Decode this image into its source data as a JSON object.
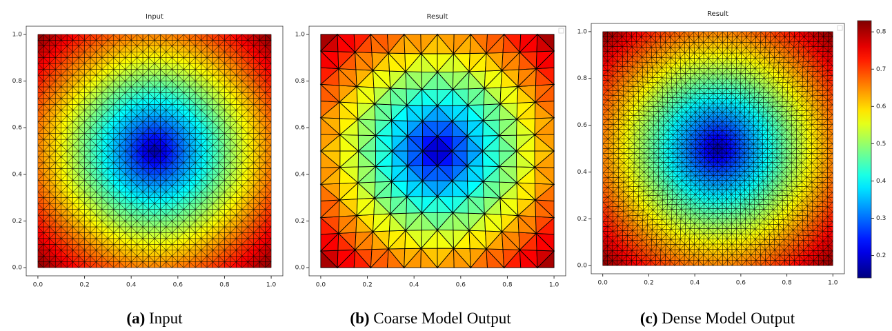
{
  "chart_data": [
    {
      "type": "mesh",
      "title": "Input",
      "caption_label": "(a)",
      "caption": "Input",
      "xlim": [
        -0.05,
        1.05
      ],
      "ylim": [
        -0.035,
        1.035
      ],
      "xticks": [
        {
          "value": 0,
          "label": "0.0"
        },
        0.2,
        0.4,
        0.6,
        0.8,
        {
          "value": 1,
          "label": "1.0"
        }
      ],
      "yticks": [
        {
          "value": 0,
          "label": "0.0"
        },
        0.2,
        0.4,
        0.6,
        0.8,
        {
          "value": 1,
          "label": "1.0"
        }
      ]
    },
    {
      "type": "mesh",
      "title": "Result",
      "caption_label": "(b)",
      "caption": "Coarse Model Output",
      "xlim": [
        -0.05,
        1.05
      ],
      "ylim": [
        -0.035,
        1.035
      ],
      "xticks": [
        {
          "value": 0,
          "label": "0.0"
        },
        0.2,
        0.4,
        0.6,
        0.8,
        {
          "value": 1,
          "label": "1.0"
        }
      ],
      "yticks": [
        {
          "value": 0,
          "label": "0.0"
        },
        0.2,
        0.4,
        0.6,
        0.8,
        {
          "value": 1,
          "label": "1.0"
        }
      ]
    },
    {
      "type": "mesh",
      "title": "Result",
      "caption_label": "(c)",
      "caption": "Dense Model Output",
      "xlim": [
        -0.05,
        1.05
      ],
      "ylim": [
        -0.035,
        1.035
      ],
      "xticks": [
        {
          "value": 0,
          "label": "0.0"
        },
        0.2,
        0.4,
        0.6,
        0.8,
        {
          "value": 1,
          "label": "1.0"
        }
      ],
      "yticks": [
        {
          "value": 0,
          "label": "0.0"
        },
        0.2,
        0.4,
        0.6,
        0.8,
        {
          "value": 1,
          "label": "1.0"
        }
      ]
    },
    {
      "type": "colorbar",
      "ylim": [
        0.14,
        0.83
      ],
      "yticks": [
        0.2,
        0.3,
        0.4,
        0.5,
        0.6,
        0.7,
        0.8
      ]
    }
  ]
}
